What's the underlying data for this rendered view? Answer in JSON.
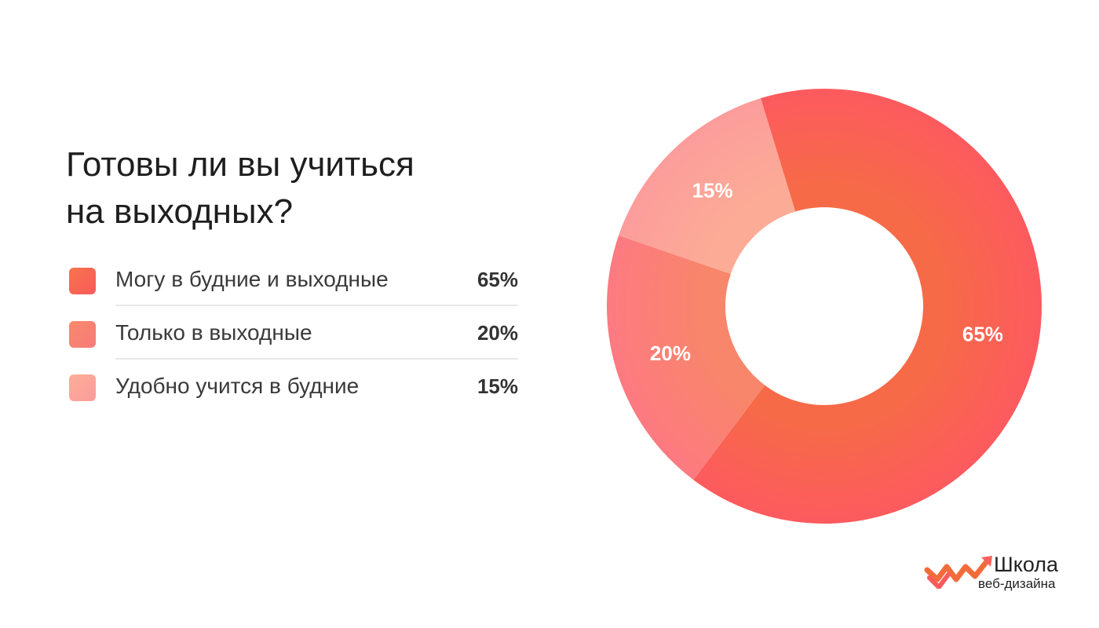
{
  "colors": {
    "slice_65": "#f9615a",
    "slice_20": "#f88175",
    "slice_15": "#fca39a",
    "logo_orange": "#f26b3a"
  },
  "chart_data": {
    "type": "pie",
    "title": "Готовы ли вы учиться на выходных?",
    "title_lines": [
      "Готовы ли вы учиться",
      "на выходных?"
    ],
    "donut": true,
    "categories": [
      "Могу в будние и выходные",
      "Только в выходные",
      "Удобно учится в будние"
    ],
    "values": [
      65,
      20,
      15
    ],
    "value_labels": [
      "65%",
      "20%",
      "15%"
    ],
    "legend": "left"
  },
  "logo": {
    "line1": "Школа",
    "line2": "веб-дизайна"
  }
}
